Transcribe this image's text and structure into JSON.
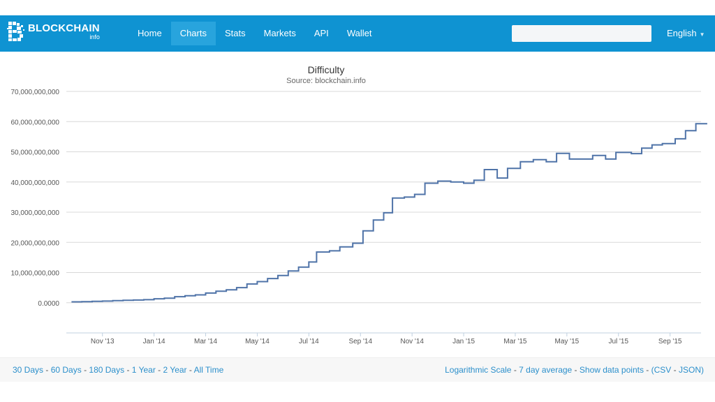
{
  "brand": {
    "name": "BLOCKCHAIN",
    "sub": "info"
  },
  "nav": [
    {
      "label": "Home",
      "active": false
    },
    {
      "label": "Charts",
      "active": true
    },
    {
      "label": "Stats",
      "active": false
    },
    {
      "label": "Markets",
      "active": false
    },
    {
      "label": "API",
      "active": false
    },
    {
      "label": "Wallet",
      "active": false
    }
  ],
  "search": {
    "placeholder": ""
  },
  "language": "English",
  "colors": {
    "navbar": "#0f93d2",
    "active_tab": "#28a4dd",
    "line": "#4f73a8",
    "link": "#2b8fcb"
  },
  "chart_data": {
    "type": "line",
    "title": "Difficulty",
    "subtitle": "Source: blockchain.info",
    "xlabel": "",
    "ylabel": "",
    "x_ticks": [
      "Nov '13",
      "Jan '14",
      "Mar '14",
      "May '14",
      "Jul '14",
      "Sep '14",
      "Nov '14",
      "Jan '15",
      "Mar '15",
      "May '15",
      "Jul '15",
      "Sep '15"
    ],
    "y_ticks": [
      "0.0000",
      "10,000,000,000",
      "20,000,000,000",
      "30,000,000,000",
      "40,000,000,000",
      "50,000,000,000",
      "60,000,000,000",
      "70,000,000,000"
    ],
    "ylim": [
      -10000000000,
      70000000000
    ],
    "xlim": [
      -0.7,
      11.6
    ],
    "grid": true,
    "series": [
      {
        "name": "Difficulty",
        "step": true,
        "points": [
          [
            -0.6,
            300000000.0
          ],
          [
            -0.4,
            350000000.0
          ],
          [
            -0.2,
            450000000.0
          ],
          [
            0.0,
            550000000.0
          ],
          [
            0.2,
            700000000.0
          ],
          [
            0.4,
            800000000.0
          ],
          [
            0.6,
            900000000.0
          ],
          [
            0.8,
            1000000000.0
          ],
          [
            1.0,
            1300000000.0
          ],
          [
            1.2,
            1500000000.0
          ],
          [
            1.4,
            2000000000.0
          ],
          [
            1.6,
            2300000000.0
          ],
          [
            1.8,
            2600000000.0
          ],
          [
            2.0,
            3200000000.0
          ],
          [
            2.2,
            3800000000.0
          ],
          [
            2.4,
            4300000000.0
          ],
          [
            2.6,
            5000000000.0
          ],
          [
            2.8,
            6200000000.0
          ],
          [
            3.0,
            7000000000.0
          ],
          [
            3.2,
            8000000000.0
          ],
          [
            3.4,
            9000000000.0
          ],
          [
            3.6,
            10500000000.0
          ],
          [
            3.8,
            11800000000.0
          ],
          [
            4.0,
            13500000000.0
          ],
          [
            4.15,
            16800000000.0
          ],
          [
            4.4,
            17200000000.0
          ],
          [
            4.6,
            18500000000.0
          ],
          [
            4.85,
            19700000000.0
          ],
          [
            5.05,
            23800000000.0
          ],
          [
            5.25,
            27400000000.0
          ],
          [
            5.45,
            29800000000.0
          ],
          [
            5.62,
            34700000000.0
          ],
          [
            5.85,
            35000000000.0
          ],
          [
            6.05,
            35900000000.0
          ],
          [
            6.25,
            39600000000.0
          ],
          [
            6.5,
            40300000000.0
          ],
          [
            6.75,
            40000000000.0
          ],
          [
            7.0,
            39600000000.0
          ],
          [
            7.2,
            40600000000.0
          ],
          [
            7.4,
            44100000000.0
          ],
          [
            7.65,
            41300000000.0
          ],
          [
            7.85,
            44500000000.0
          ],
          [
            8.1,
            46700000000.0
          ],
          [
            8.35,
            47400000000.0
          ],
          [
            8.6,
            46700000000.0
          ],
          [
            8.8,
            49500000000.0
          ],
          [
            9.05,
            47600000000.0
          ],
          [
            9.5,
            48800000000.0
          ],
          [
            9.75,
            47600000000.0
          ],
          [
            9.95,
            49800000000.0
          ],
          [
            10.25,
            49400000000.0
          ],
          [
            10.45,
            51200000000.0
          ],
          [
            10.65,
            52300000000.0
          ],
          [
            10.85,
            52700000000.0
          ],
          [
            11.1,
            54300000000.0
          ],
          [
            11.3,
            57000000000.0
          ],
          [
            11.5,
            59300000000.0
          ],
          [
            11.72,
            59300000000.0
          ]
        ]
      }
    ]
  },
  "footer": {
    "left": [
      "30 Days",
      "60 Days",
      "180 Days",
      "1 Year",
      "2 Year",
      "All Time"
    ],
    "right": {
      "log": "Logarithmic Scale",
      "avg": "7 day average",
      "points": "Show data points",
      "csv": "CSV",
      "json": "JSON"
    }
  }
}
